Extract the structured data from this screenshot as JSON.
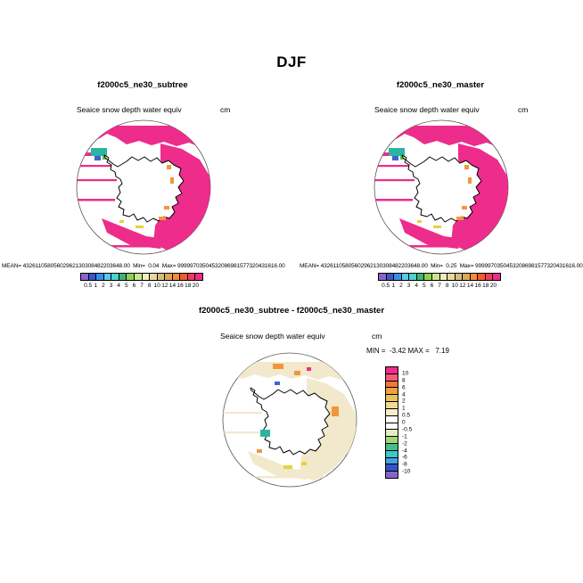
{
  "page": {
    "title": "DJF"
  },
  "panels": {
    "left": {
      "title": "f2000c5_ne30_subtree",
      "subtitle": "Seaice snow depth water equiv",
      "units": "cm",
      "stats": "MEAN= 43261105805602962130308482203648.00  Min=  0.04  Max= 99999703504532086981577320431616.00"
    },
    "right": {
      "title": "f2000c5_ne30_master",
      "subtitle": "Seaice snow depth water equiv",
      "units": "cm",
      "stats": "MEAN= 43261105805602962130308482203648.00  Min=  0.25  Max= 99999703504532086981577320431616.00"
    },
    "diff": {
      "title": "f2000c5_ne30_subtree - f2000c5_ne30_master",
      "subtitle": "Seaice snow depth water equiv",
      "units": "cm",
      "minmax": "MIN =  -3.42 MAX =   7.19"
    }
  },
  "colorbar_top": {
    "labels": [
      "0.5",
      "1",
      "2",
      "3",
      "4",
      "5",
      "6",
      "7",
      "8",
      "10",
      "12",
      "14",
      "16",
      "18",
      "20"
    ],
    "colors": [
      "#8B62C9",
      "#3C55C8",
      "#3C8CE1",
      "#5AC8F0",
      "#50D2C8",
      "#3CB478",
      "#8CD250",
      "#C8E68C",
      "#EEEEC0",
      "#E6D8A0",
      "#D2BE82",
      "#DCA55A",
      "#F08C3C",
      "#F55A28",
      "#F03C5A",
      "#ED2C8C"
    ]
  },
  "colorbar_diff": {
    "labels": [
      "10",
      "8",
      "6",
      "4",
      "2",
      "1",
      "0.5",
      "0",
      "-0.5",
      "-1",
      "-2",
      "-4",
      "-6",
      "-8",
      "-10"
    ],
    "colors": [
      "#ED2C8C",
      "#F45A78",
      "#F0783C",
      "#F0A03C",
      "#E6C25A",
      "#EEDC96",
      "#F6EEC8",
      "#FFFFFF",
      "#FFFFFF",
      "#E2F0C0",
      "#A0D878",
      "#46BE8C",
      "#3CC8C8",
      "#48A0E1",
      "#2E55C8",
      "#8B62C9"
    ]
  },
  "palette": {
    "seaice_pink": "#ED2C8C",
    "diff_cream": "#F2E9CC",
    "teal": "#2BB5A0",
    "blue": "#3C64D2",
    "green": "#64B43C",
    "orange": "#F0963C",
    "yellow": "#E6D23C"
  },
  "chart_data": [
    {
      "type": "heatmap",
      "projection": "south-polar-stereographic-map",
      "title": "f2000c5_ne30_subtree",
      "variable": "Seaice snow depth water equiv",
      "units": "cm",
      "mean": "43261105805602962130308482203648.00",
      "min": "0.04",
      "max": "99999703504532086981577320431616.00",
      "colorbar_levels": [
        0.5,
        1,
        2,
        3,
        4,
        5,
        6,
        7,
        8,
        10,
        12,
        14,
        16,
        18,
        20
      ],
      "legend_position": "bottom"
    },
    {
      "type": "heatmap",
      "projection": "south-polar-stereographic-map",
      "title": "f2000c5_ne30_master",
      "variable": "Seaice snow depth water equiv",
      "units": "cm",
      "mean": "43261105805602962130308482203648.00",
      "min": "0.25",
      "max": "99999703504532086981577320431616.00",
      "colorbar_levels": [
        0.5,
        1,
        2,
        3,
        4,
        5,
        6,
        7,
        8,
        10,
        12,
        14,
        16,
        18,
        20
      ],
      "legend_position": "bottom"
    },
    {
      "type": "heatmap",
      "projection": "south-polar-stereographic-map",
      "title": "f2000c5_ne30_subtree - f2000c5_ne30_master",
      "variable": "Seaice snow depth water equiv",
      "units": "cm",
      "min": -3.42,
      "max": 7.19,
      "colorbar_levels": [
        10,
        8,
        6,
        4,
        2,
        1,
        0.5,
        0,
        -0.5,
        -1,
        -2,
        -4,
        -6,
        -8,
        -10
      ],
      "legend_position": "right"
    }
  ]
}
